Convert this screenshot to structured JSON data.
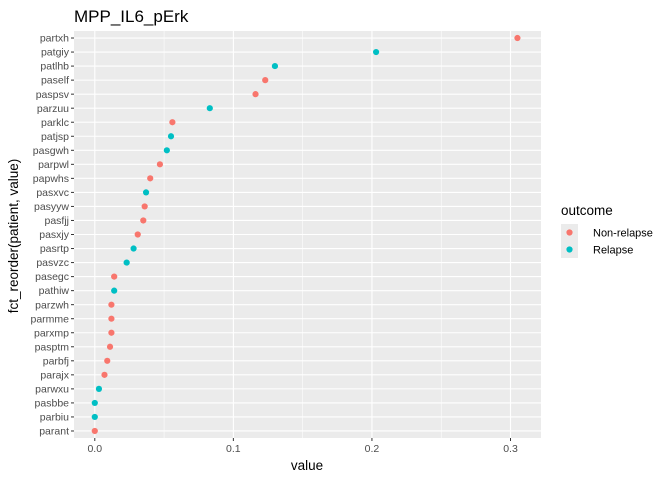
{
  "chart_data": {
    "type": "scatter",
    "title": "MPP_IL6_pErk",
    "xlabel": "value",
    "ylabel": "fct_reorder(patient, value)",
    "xlim": [
      -0.015,
      0.322
    ],
    "x_ticks": [
      0.0,
      0.1,
      0.2,
      0.3
    ],
    "x_tick_labels": [
      "0.0",
      "0.1",
      "0.2",
      "0.3"
    ],
    "grid": true,
    "legend": {
      "title": "outcome",
      "position": "right",
      "entries": [
        {
          "label": "Non-relapse",
          "color": "#F8766D"
        },
        {
          "label": "Relapse",
          "color": "#00BFC4"
        }
      ]
    },
    "categories": [
      "parant",
      "parbiu",
      "pasbbe",
      "parwxu",
      "parajx",
      "parbfj",
      "pasptm",
      "parxmp",
      "parmme",
      "parzwh",
      "pathiw",
      "pasegc",
      "pasvzc",
      "pasrtp",
      "pasxjy",
      "pasfjj",
      "pasyyw",
      "pasxvc",
      "papwhs",
      "parpwl",
      "pasgwh",
      "patjsp",
      "parklc",
      "parzuu",
      "paspsv",
      "paself",
      "patlhb",
      "patgiy",
      "partxh"
    ],
    "points": [
      {
        "patient": "parant",
        "value": 0.0,
        "outcome": "Non-relapse"
      },
      {
        "patient": "parbiu",
        "value": 0.0,
        "outcome": "Relapse"
      },
      {
        "patient": "pasbbe",
        "value": 0.0,
        "outcome": "Relapse"
      },
      {
        "patient": "parwxu",
        "value": 0.003,
        "outcome": "Relapse"
      },
      {
        "patient": "parajx",
        "value": 0.007,
        "outcome": "Non-relapse"
      },
      {
        "patient": "parbfj",
        "value": 0.009,
        "outcome": "Non-relapse"
      },
      {
        "patient": "pasptm",
        "value": 0.011,
        "outcome": "Non-relapse"
      },
      {
        "patient": "parxmp",
        "value": 0.012,
        "outcome": "Non-relapse"
      },
      {
        "patient": "parmme",
        "value": 0.012,
        "outcome": "Non-relapse"
      },
      {
        "patient": "parzwh",
        "value": 0.012,
        "outcome": "Non-relapse"
      },
      {
        "patient": "pathiw",
        "value": 0.014,
        "outcome": "Relapse"
      },
      {
        "patient": "pasegc",
        "value": 0.014,
        "outcome": "Non-relapse"
      },
      {
        "patient": "pasvzc",
        "value": 0.023,
        "outcome": "Relapse"
      },
      {
        "patient": "pasrtp",
        "value": 0.028,
        "outcome": "Relapse"
      },
      {
        "patient": "pasxjy",
        "value": 0.031,
        "outcome": "Non-relapse"
      },
      {
        "patient": "pasfjj",
        "value": 0.035,
        "outcome": "Non-relapse"
      },
      {
        "patient": "pasyyw",
        "value": 0.036,
        "outcome": "Non-relapse"
      },
      {
        "patient": "pasxvc",
        "value": 0.037,
        "outcome": "Relapse"
      },
      {
        "patient": "papwhs",
        "value": 0.04,
        "outcome": "Non-relapse"
      },
      {
        "patient": "parpwl",
        "value": 0.047,
        "outcome": "Non-relapse"
      },
      {
        "patient": "pasgwh",
        "value": 0.052,
        "outcome": "Relapse"
      },
      {
        "patient": "patjsp",
        "value": 0.055,
        "outcome": "Relapse"
      },
      {
        "patient": "parklc",
        "value": 0.056,
        "outcome": "Non-relapse"
      },
      {
        "patient": "parzuu",
        "value": 0.083,
        "outcome": "Relapse"
      },
      {
        "patient": "paspsv",
        "value": 0.116,
        "outcome": "Non-relapse"
      },
      {
        "patient": "paself",
        "value": 0.123,
        "outcome": "Non-relapse"
      },
      {
        "patient": "patlhb",
        "value": 0.13,
        "outcome": "Relapse"
      },
      {
        "patient": "patgiy",
        "value": 0.203,
        "outcome": "Relapse"
      },
      {
        "patient": "partxh",
        "value": 0.305,
        "outcome": "Non-relapse"
      }
    ]
  },
  "theme": {
    "panel_background": "#EBEBEB",
    "grid_major": "#FFFFFF",
    "tick_color": "#333333",
    "text_color": "#4D4D4D"
  }
}
